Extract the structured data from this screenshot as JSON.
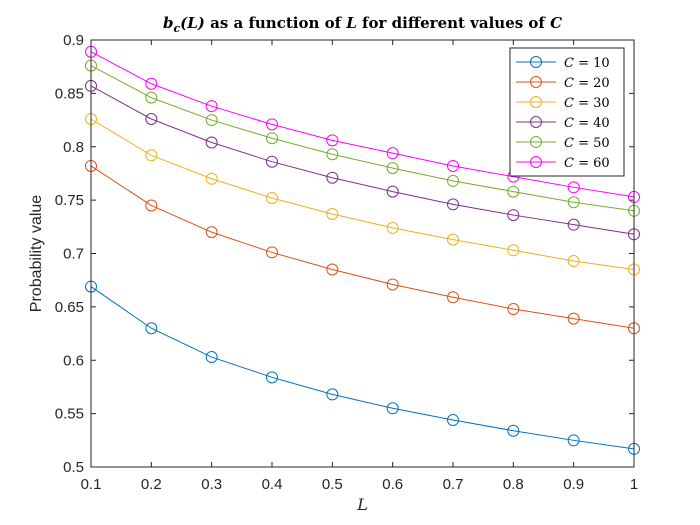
{
  "chart_data": {
    "type": "line",
    "title": "b_c(L) as a function of L for different values of C",
    "title_parts": {
      "func": "b",
      "sub": "c",
      "arg": "(L)",
      "middle": " as a function of ",
      "var": "L",
      "end": " for different values of ",
      "param": "C"
    },
    "xlabel": "L",
    "ylabel": "Probability value",
    "xlim": [
      0.1,
      1.0
    ],
    "ylim": [
      0.5,
      0.9
    ],
    "xticks": [
      0.1,
      0.2,
      0.3,
      0.4,
      0.5,
      0.6,
      0.7,
      0.8,
      0.9,
      1
    ],
    "xtick_labels": [
      "0.1",
      "0.2",
      "0.3",
      "0.4",
      "0.5",
      "0.6",
      "0.7",
      "0.8",
      "0.9",
      "1"
    ],
    "yticks": [
      0.5,
      0.55,
      0.6,
      0.65,
      0.7,
      0.75,
      0.8,
      0.85,
      0.9
    ],
    "ytick_labels": [
      "0.5",
      "0.55",
      "0.6",
      "0.65",
      "0.7",
      "0.75",
      "0.8",
      "0.85",
      "0.9"
    ],
    "grid": false,
    "legend_position": "top-right",
    "legend_var": "C",
    "x": [
      0.1,
      0.2,
      0.3,
      0.4,
      0.5,
      0.6,
      0.7,
      0.8,
      0.9,
      1.0
    ],
    "series": [
      {
        "name": "C = 10",
        "value_label": "10",
        "color": "#0072BD",
        "values": [
          0.669,
          0.63,
          0.603,
          0.584,
          0.568,
          0.555,
          0.544,
          0.534,
          0.525,
          0.517
        ]
      },
      {
        "name": "C = 20",
        "value_label": "20",
        "color": "#D95319",
        "values": [
          0.782,
          0.745,
          0.72,
          0.701,
          0.685,
          0.671,
          0.659,
          0.648,
          0.639,
          0.63
        ]
      },
      {
        "name": "C = 30",
        "value_label": "30",
        "color": "#EDB120",
        "values": [
          0.826,
          0.792,
          0.77,
          0.752,
          0.737,
          0.724,
          0.713,
          0.703,
          0.693,
          0.685
        ]
      },
      {
        "name": "C = 40",
        "value_label": "40",
        "color": "#7E2F8E",
        "values": [
          0.857,
          0.826,
          0.804,
          0.786,
          0.771,
          0.758,
          0.746,
          0.736,
          0.727,
          0.718
        ]
      },
      {
        "name": "C = 50",
        "value_label": "50",
        "color": "#77AC30",
        "values": [
          0.876,
          0.846,
          0.825,
          0.808,
          0.793,
          0.78,
          0.768,
          0.758,
          0.748,
          0.74
        ]
      },
      {
        "name": "C = 60",
        "value_label": "60",
        "color": "#FF00FF",
        "values": [
          0.889,
          0.859,
          0.838,
          0.821,
          0.806,
          0.794,
          0.782,
          0.772,
          0.762,
          0.753
        ]
      }
    ]
  }
}
